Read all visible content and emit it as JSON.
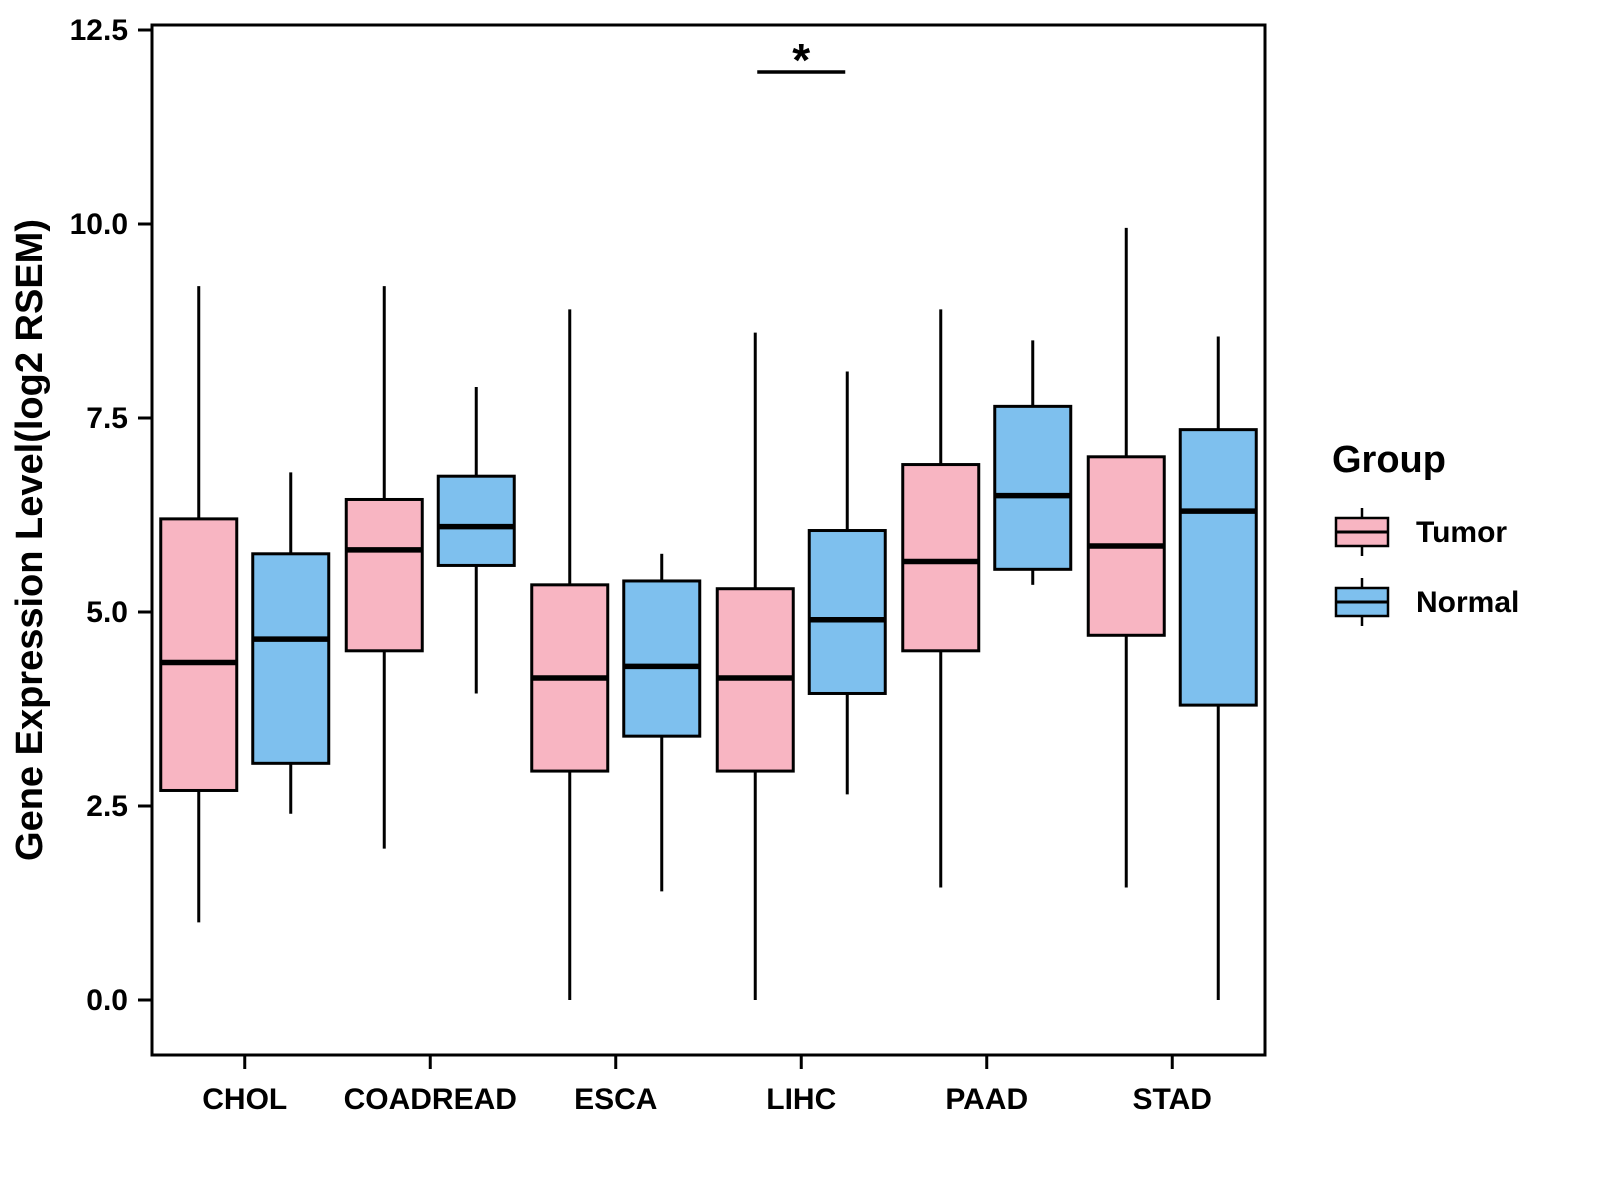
{
  "legend": {
    "title": "Group",
    "entries": [
      {
        "label": "Tumor",
        "color": "#F8B5C2"
      },
      {
        "label": "Normal",
        "color": "#7EC0EE"
      }
    ]
  },
  "chart_data": {
    "type": "boxplot",
    "title": "",
    "xlabel": "",
    "ylabel": "Gene Expression Level(log2 RSEM)",
    "ylim": [
      0,
      12.5
    ],
    "yticks": [
      0,
      2.5,
      5,
      7.5,
      10,
      12.5
    ],
    "categories": [
      "CHOL",
      "COADREAD",
      "ESCA",
      "LIHC",
      "PAAD",
      "STAD"
    ],
    "groups": [
      "Tumor",
      "Normal"
    ],
    "colors": {
      "Tumor": "#F8B5C2",
      "Normal": "#7EC0EE",
      "stroke": "#000000"
    },
    "legend_position": "right",
    "grid": false,
    "series": [
      {
        "name": "Tumor",
        "color": "#F8B5C2",
        "boxes": [
          {
            "category": "CHOL",
            "min": 1.0,
            "q1": 2.7,
            "median": 4.35,
            "q3": 6.2,
            "max": 9.2
          },
          {
            "category": "COADREAD",
            "min": 1.95,
            "q1": 4.5,
            "median": 5.8,
            "q3": 6.45,
            "max": 9.2
          },
          {
            "category": "ESCA",
            "min": 0.0,
            "q1": 2.95,
            "median": 4.15,
            "q3": 5.35,
            "max": 8.9
          },
          {
            "category": "LIHC",
            "min": 0.0,
            "q1": 2.95,
            "median": 4.15,
            "q3": 5.3,
            "max": 8.6
          },
          {
            "category": "PAAD",
            "min": 1.45,
            "q1": 4.5,
            "median": 5.65,
            "q3": 6.9,
            "max": 8.9
          },
          {
            "category": "STAD",
            "min": 1.45,
            "q1": 4.7,
            "median": 5.85,
            "q3": 7.0,
            "max": 9.95
          }
        ]
      },
      {
        "name": "Normal",
        "color": "#7EC0EE",
        "boxes": [
          {
            "category": "CHOL",
            "min": 2.4,
            "q1": 3.05,
            "median": 4.65,
            "q3": 5.75,
            "max": 6.8
          },
          {
            "category": "COADREAD",
            "min": 3.95,
            "q1": 5.6,
            "median": 6.1,
            "q3": 6.75,
            "max": 7.9
          },
          {
            "category": "ESCA",
            "min": 1.4,
            "q1": 3.4,
            "median": 4.3,
            "q3": 5.4,
            "max": 5.75
          },
          {
            "category": "LIHC",
            "min": 2.65,
            "q1": 3.95,
            "median": 4.9,
            "q3": 6.05,
            "max": 8.1
          },
          {
            "category": "PAAD",
            "min": 5.35,
            "q1": 5.55,
            "median": 6.5,
            "q3": 7.65,
            "max": 8.5
          },
          {
            "category": "STAD",
            "min": 0.0,
            "q1": 3.8,
            "median": 6.3,
            "q3": 7.35,
            "max": 8.55
          }
        ]
      }
    ],
    "annotations": [
      {
        "type": "significance",
        "category": "LIHC",
        "label": "*"
      }
    ]
  }
}
